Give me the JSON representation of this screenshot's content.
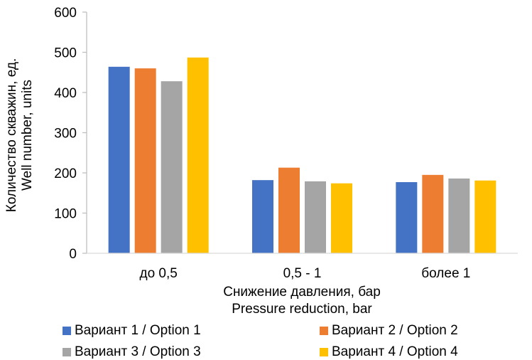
{
  "chart_data": {
    "type": "bar",
    "title": "",
    "ylabel": [
      "Количество скважин, ед.",
      "Well number, units"
    ],
    "xlabel": [
      "Снижение давления, бар",
      "Pressure reduction, bar"
    ],
    "categories": [
      "до 0,5",
      "0,5 - 1",
      "более 1"
    ],
    "ylim": [
      0,
      600
    ],
    "yticks": [
      0,
      100,
      200,
      300,
      400,
      500,
      600
    ],
    "grid": false,
    "legend_position": "bottom",
    "series": [
      {
        "name": "Вариант 1 / Option 1",
        "color": "#4472C4",
        "values": [
          464,
          182,
          177
        ]
      },
      {
        "name": "Вариант 2 / Option 2",
        "color": "#ED7D31",
        "values": [
          460,
          213,
          195
        ]
      },
      {
        "name": "Вариант 3 / Option 3",
        "color": "#A5A5A5",
        "values": [
          428,
          179,
          186
        ]
      },
      {
        "name": "Вариант 4 / Option 4",
        "color": "#FFC000",
        "values": [
          487,
          174,
          181
        ]
      }
    ]
  }
}
